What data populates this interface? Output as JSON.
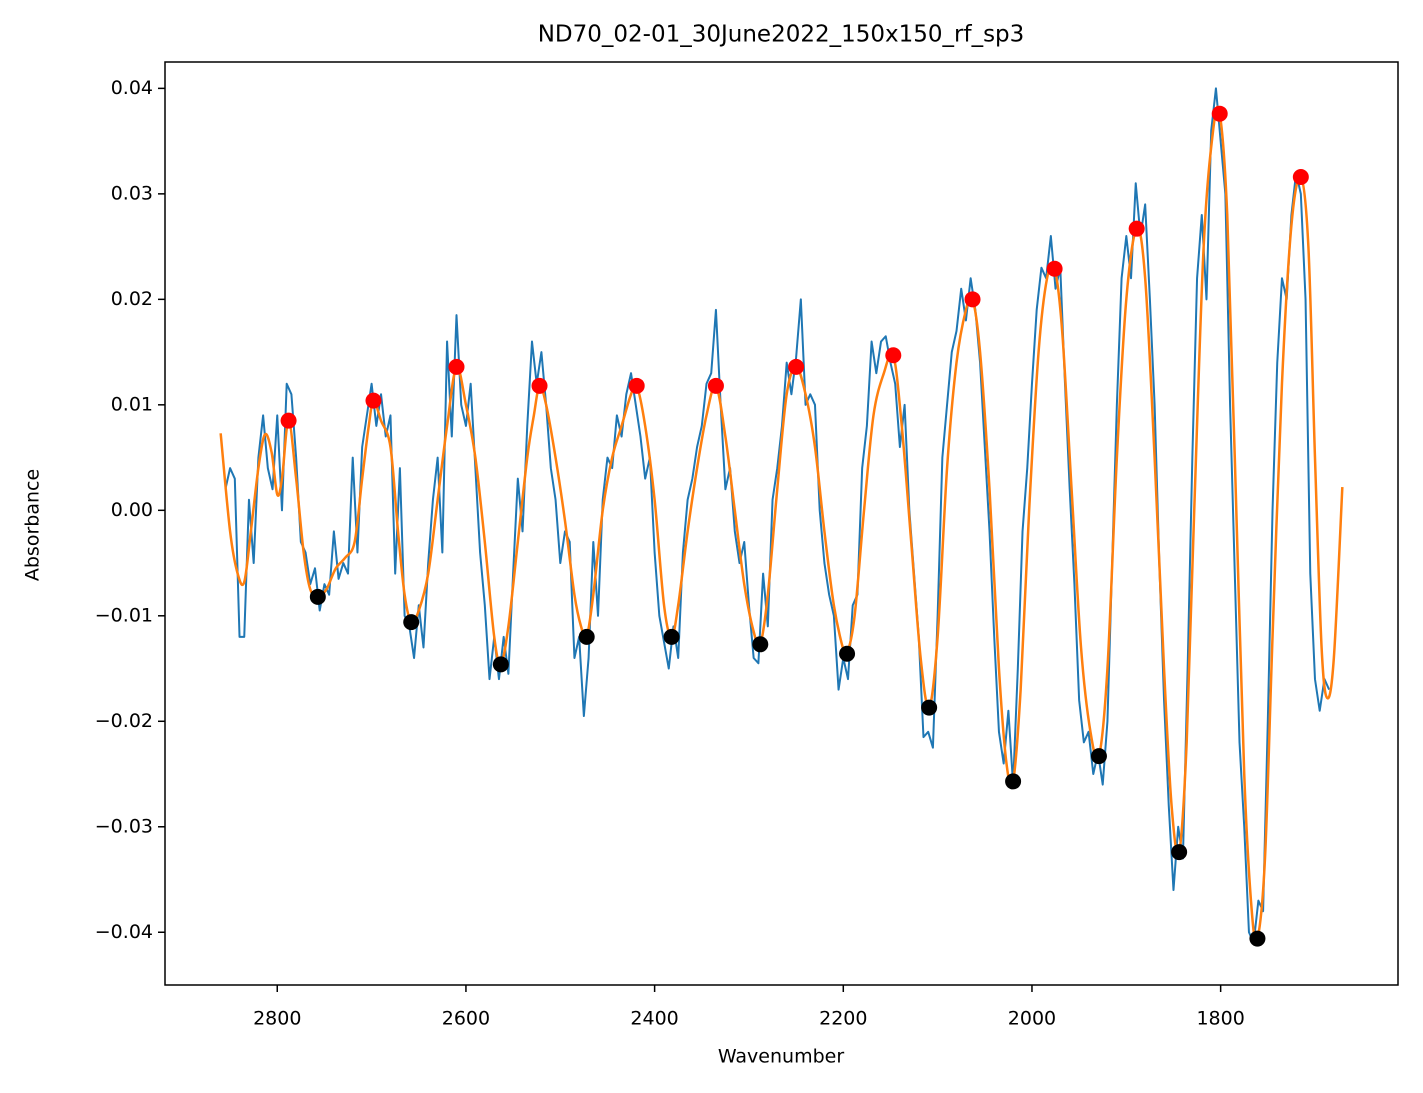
{
  "chart_data": {
    "type": "line",
    "title": "ND70_02-01_30June2022_150x150_rf_sp3",
    "x_label": "Wavenumber",
    "y_label": "Absorbance",
    "xlim": [
      2919,
      1612
    ],
    "ylim": [
      -0.045,
      0.0425
    ],
    "xticks": [
      2800,
      2600,
      2400,
      2200,
      2000,
      1800
    ],
    "yticks": [
      {
        "value": -0.04,
        "label": "−0.04"
      },
      {
        "value": -0.03,
        "label": "−0.03"
      },
      {
        "value": -0.02,
        "label": "−0.02"
      },
      {
        "value": -0.01,
        "label": "−0.01"
      },
      {
        "value": 0,
        "label": "0.00"
      },
      0.01,
      0.02,
      0.03,
      0.04
    ],
    "series": [
      {
        "type": "line",
        "color": "#1f77b4",
        "x": [
          2855,
          2850,
          2845,
          2840,
          2835,
          2830,
          2825,
          2820,
          2815,
          2810,
          2805,
          2800,
          2795,
          2790,
          2785,
          2780,
          2775,
          2770,
          2765,
          2760,
          2755,
          2750,
          2745,
          2740,
          2735,
          2730,
          2725,
          2720,
          2715,
          2710,
          2705,
          2700,
          2695,
          2690,
          2685,
          2680,
          2675,
          2670,
          2665,
          2660,
          2655,
          2650,
          2645,
          2640,
          2635,
          2630,
          2625,
          2620,
          2615,
          2610,
          2605,
          2600,
          2595,
          2590,
          2585,
          2580,
          2575,
          2570,
          2565,
          2560,
          2555,
          2550,
          2545,
          2540,
          2535,
          2530,
          2525,
          2520,
          2515,
          2510,
          2505,
          2500,
          2495,
          2490,
          2485,
          2480,
          2475,
          2470,
          2465,
          2460,
          2455,
          2450,
          2445,
          2440,
          2435,
          2430,
          2425,
          2420,
          2415,
          2410,
          2405,
          2400,
          2395,
          2390,
          2385,
          2380,
          2375,
          2370,
          2365,
          2360,
          2355,
          2350,
          2345,
          2340,
          2335,
          2330,
          2325,
          2320,
          2315,
          2310,
          2305,
          2300,
          2295,
          2290,
          2285,
          2280,
          2275,
          2270,
          2265,
          2260,
          2255,
          2250,
          2245,
          2240,
          2235,
          2230,
          2225,
          2220,
          2215,
          2210,
          2205,
          2200,
          2195,
          2190,
          2185,
          2180,
          2175,
          2170,
          2165,
          2160,
          2155,
          2150,
          2145,
          2140,
          2135,
          2130,
          2125,
          2120,
          2115,
          2110,
          2105,
          2100,
          2095,
          2090,
          2085,
          2080,
          2075,
          2070,
          2065,
          2060,
          2055,
          2050,
          2045,
          2040,
          2035,
          2030,
          2025,
          2020,
          2015,
          2010,
          2005,
          2000,
          1995,
          1990,
          1985,
          1980,
          1975,
          1970,
          1965,
          1960,
          1955,
          1950,
          1945,
          1940,
          1935,
          1930,
          1925,
          1920,
          1915,
          1910,
          1905,
          1900,
          1895,
          1890,
          1885,
          1880,
          1875,
          1870,
          1865,
          1860,
          1855,
          1850,
          1845,
          1840,
          1835,
          1830,
          1825,
          1820,
          1815,
          1810,
          1805,
          1800,
          1795,
          1790,
          1785,
          1780,
          1775,
          1770,
          1765,
          1760,
          1755,
          1750,
          1745,
          1740,
          1735,
          1730,
          1725,
          1720,
          1715,
          1710,
          1705,
          1700,
          1695,
          1690,
          1685
        ],
        "values": [
          0.002,
          0.004,
          0.003,
          -0.012,
          -0.012,
          0.001,
          -0.005,
          0.005,
          0.009,
          0.004,
          0.002,
          0.009,
          0.0,
          0.012,
          0.011,
          0.005,
          -0.003,
          -0.004,
          -0.007,
          -0.0055,
          -0.0095,
          -0.007,
          -0.008,
          -0.002,
          -0.0065,
          -0.005,
          -0.006,
          0.005,
          -0.004,
          0.006,
          0.009,
          0.012,
          0.008,
          0.011,
          0.007,
          0.009,
          -0.006,
          0.004,
          -0.01,
          -0.011,
          -0.014,
          -0.009,
          -0.013,
          -0.005,
          0.001,
          0.005,
          -0.004,
          0.016,
          0.007,
          0.0185,
          0.01,
          0.008,
          0.012,
          0.004,
          -0.004,
          -0.009,
          -0.016,
          -0.012,
          -0.016,
          -0.012,
          -0.0155,
          -0.006,
          0.003,
          -0.002,
          0.008,
          0.016,
          0.012,
          0.015,
          0.01,
          0.004,
          0.001,
          -0.005,
          -0.002,
          -0.003,
          -0.014,
          -0.012,
          -0.0195,
          -0.014,
          -0.003,
          -0.01,
          0.001,
          0.005,
          0.004,
          0.009,
          0.007,
          0.011,
          0.013,
          0.01,
          0.007,
          0.003,
          0.005,
          -0.004,
          -0.01,
          -0.0125,
          -0.015,
          -0.011,
          -0.014,
          -0.004,
          0.001,
          0.003,
          0.006,
          0.008,
          0.012,
          0.013,
          0.019,
          0.01,
          0.002,
          0.004,
          -0.002,
          -0.005,
          -0.003,
          -0.009,
          -0.014,
          -0.0145,
          -0.006,
          -0.011,
          0.001,
          0.004,
          0.008,
          0.014,
          0.011,
          0.0145,
          0.02,
          0.01,
          0.011,
          0.01,
          0.0,
          -0.005,
          -0.008,
          -0.01,
          -0.017,
          -0.014,
          -0.016,
          -0.009,
          -0.008,
          0.004,
          0.008,
          0.016,
          0.013,
          0.016,
          0.0165,
          0.014,
          0.012,
          0.006,
          0.01,
          0.0,
          -0.006,
          -0.012,
          -0.0215,
          -0.021,
          -0.0225,
          -0.01,
          0.005,
          0.01,
          0.015,
          0.017,
          0.021,
          0.018,
          0.022,
          0.019,
          0.014,
          0.006,
          -0.002,
          -0.012,
          -0.021,
          -0.024,
          -0.019,
          -0.026,
          -0.015,
          -0.002,
          0.004,
          0.012,
          0.019,
          0.023,
          0.022,
          0.026,
          0.021,
          0.023,
          0.012,
          0.002,
          -0.007,
          -0.018,
          -0.022,
          -0.021,
          -0.025,
          -0.023,
          -0.026,
          -0.02,
          -0.005,
          0.01,
          0.022,
          0.026,
          0.022,
          0.031,
          0.026,
          0.029,
          0.02,
          0.01,
          -0.005,
          -0.018,
          -0.028,
          -0.036,
          -0.03,
          -0.033,
          -0.015,
          0.005,
          0.022,
          0.028,
          0.02,
          0.036,
          0.04,
          0.035,
          0.03,
          0.01,
          -0.006,
          -0.022,
          -0.03,
          -0.04,
          -0.041,
          -0.037,
          -0.038,
          -0.02,
          0.0,
          0.014,
          0.022,
          0.02,
          0.028,
          0.032,
          0.03,
          0.02,
          -0.006,
          -0.016,
          -0.019,
          -0.016,
          -0.017
        ]
      },
      {
        "type": "smooth",
        "color": "#ff7f0e",
        "x": [
          2860,
          2850,
          2842,
          2835,
          2828,
          2820,
          2813,
          2806,
          2800,
          2795,
          2788,
          2780,
          2772,
          2765,
          2757,
          2748,
          2738,
          2728,
          2718,
          2710,
          2703,
          2698,
          2690,
          2680,
          2672,
          2665,
          2658,
          2650,
          2640,
          2630,
          2620,
          2610,
          2600,
          2590,
          2580,
          2570,
          2563,
          2555,
          2545,
          2535,
          2528,
          2522,
          2515,
          2505,
          2495,
          2485,
          2478,
          2472,
          2465,
          2455,
          2445,
          2435,
          2425,
          2419,
          2410,
          2400,
          2390,
          2382,
          2375,
          2365,
          2355,
          2345,
          2335,
          2325,
          2315,
          2305,
          2295,
          2288,
          2280,
          2270,
          2260,
          2250,
          2240,
          2230,
          2220,
          2210,
          2200,
          2196,
          2188,
          2178,
          2168,
          2157,
          2147,
          2138,
          2128,
          2118,
          2109,
          2100,
          2090,
          2080,
          2070,
          2063,
          2055,
          2045,
          2035,
          2027,
          2020,
          2012,
          2003,
          1993,
          1984,
          1976,
          1968,
          1958,
          1948,
          1938,
          1929,
          1920,
          1910,
          1900,
          1889,
          1880,
          1870,
          1860,
          1852,
          1844,
          1836,
          1828,
          1818,
          1808,
          1801,
          1793,
          1785,
          1775,
          1767,
          1761,
          1753,
          1745,
          1735,
          1725,
          1715,
          1707,
          1700,
          1693,
          1687,
          1680,
          1671
        ],
        "values": [
          0.0073,
          -0.002,
          -0.006,
          -0.0068,
          -0.002,
          0.004,
          0.0072,
          0.0055,
          0.0015,
          0.003,
          0.0085,
          0.003,
          -0.004,
          -0.0075,
          -0.0082,
          -0.0075,
          -0.0055,
          -0.0045,
          -0.003,
          0.003,
          0.008,
          0.0104,
          0.0085,
          0.006,
          -0.002,
          -0.008,
          -0.0106,
          -0.0095,
          -0.006,
          0.001,
          0.008,
          0.0136,
          0.01,
          0.005,
          -0.003,
          -0.012,
          -0.0146,
          -0.011,
          -0.003,
          0.005,
          0.009,
          0.0118,
          0.01,
          0.005,
          -0.001,
          -0.008,
          -0.011,
          -0.012,
          -0.008,
          0.0,
          0.005,
          0.008,
          0.011,
          0.0118,
          0.008,
          0.001,
          -0.009,
          -0.012,
          -0.009,
          -0.002,
          0.004,
          0.009,
          0.0118,
          0.007,
          0.0,
          -0.007,
          -0.0115,
          -0.0127,
          -0.008,
          0.002,
          0.011,
          0.0136,
          0.011,
          0.006,
          -0.002,
          -0.009,
          -0.0132,
          -0.0136,
          -0.01,
          0.0,
          0.009,
          0.013,
          0.0147,
          0.008,
          -0.003,
          -0.014,
          -0.0187,
          -0.012,
          0.004,
          0.014,
          0.019,
          0.02,
          0.015,
          0.002,
          -0.015,
          -0.024,
          -0.0257,
          -0.017,
          0.0,
          0.015,
          0.022,
          0.0229,
          0.017,
          0.002,
          -0.013,
          -0.021,
          -0.0233,
          -0.015,
          0.005,
          0.02,
          0.0267,
          0.022,
          0.005,
          -0.015,
          -0.028,
          -0.0324,
          -0.022,
          0.0,
          0.025,
          0.036,
          0.0376,
          0.028,
          0.005,
          -0.025,
          -0.038,
          -0.0406,
          -0.033,
          -0.012,
          0.012,
          0.027,
          0.0316,
          0.025,
          0.005,
          -0.013,
          -0.0178,
          -0.014,
          0.0022
        ]
      },
      {
        "type": "scatter",
        "color": "red",
        "x": [
          2788,
          2698,
          2610,
          2522,
          2419,
          2335,
          2250,
          2147,
          2063,
          1976,
          1889,
          1801,
          1715
        ],
        "values": [
          0.0085,
          0.0104,
          0.0136,
          0.0118,
          0.0118,
          0.0118,
          0.0136,
          0.0147,
          0.02,
          0.0229,
          0.0267,
          0.0376,
          0.0316
        ]
      },
      {
        "type": "scatter",
        "color": "black",
        "x": [
          2757,
          2658,
          2563,
          2472,
          2382,
          2288,
          2196,
          2109,
          2020,
          1929,
          1844,
          1761
        ],
        "values": [
          -0.0082,
          -0.0106,
          -0.0146,
          -0.012,
          -0.012,
          -0.0127,
          -0.0136,
          -0.0187,
          -0.0257,
          -0.0233,
          -0.0324,
          -0.0406
        ]
      }
    ]
  }
}
